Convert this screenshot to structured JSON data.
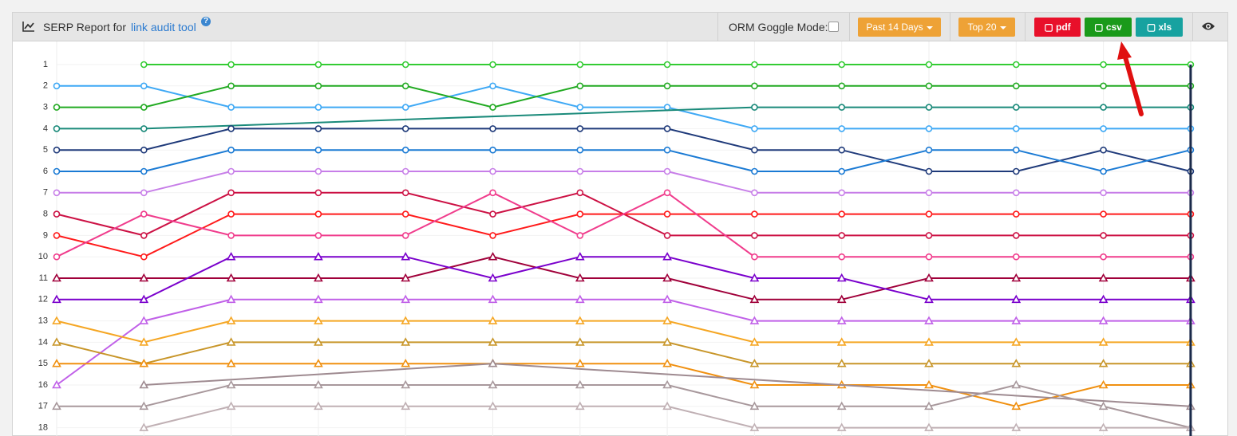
{
  "header": {
    "title_prefix": "SERP Report for",
    "link": "link audit tool",
    "help_icon": "?",
    "orm_label": "ORM Goggle Mode:",
    "buttons": {
      "period": "Past 14 Days",
      "top": "Top 20",
      "pdf": "pdf",
      "csv": "csv",
      "xls": "xls"
    }
  },
  "chart_data": {
    "type": "line",
    "reversed": true,
    "grid": true,
    "connect_nulls": true,
    "categories": [
      null,
      null,
      null,
      null,
      null,
      null,
      null,
      null,
      null,
      null,
      null,
      null,
      null,
      null
    ],
    "ylim": [
      0.5,
      20
    ],
    "yticks": [
      1,
      2,
      3,
      4,
      5,
      6,
      7,
      8,
      9,
      10,
      11,
      12,
      13,
      14,
      15,
      16,
      17,
      18
    ],
    "series": [
      {
        "color": "#33cc33",
        "marker": "circle",
        "values": [
          null,
          1,
          1,
          1,
          1,
          1,
          1,
          1,
          1,
          1,
          1,
          1,
          1,
          1
        ]
      },
      {
        "color": "#3fa9f5",
        "marker": "circle",
        "values": [
          2,
          2,
          3,
          3,
          3,
          2,
          3,
          3,
          4,
          4,
          4,
          4,
          4,
          4
        ]
      },
      {
        "color": "#22aa22",
        "marker": "circle",
        "values": [
          3,
          3,
          2,
          2,
          2,
          3,
          2,
          2,
          2,
          2,
          2,
          2,
          2,
          2
        ]
      },
      {
        "color": "#1a8a7a",
        "marker": "circle",
        "values": [
          4,
          4,
          null,
          null,
          null,
          null,
          null,
          null,
          3,
          3,
          3,
          3,
          3,
          3
        ]
      },
      {
        "color": "#1f3a7a",
        "marker": "circle",
        "values": [
          5,
          5,
          4,
          4,
          4,
          4,
          4,
          4,
          5,
          5,
          6,
          6,
          5,
          6
        ]
      },
      {
        "color": "#1a7ad4",
        "marker": "circle",
        "values": [
          6,
          6,
          5,
          5,
          5,
          5,
          5,
          5,
          6,
          6,
          5,
          5,
          6,
          5
        ]
      },
      {
        "color": "#c77ee8",
        "marker": "circle",
        "values": [
          7,
          7,
          6,
          6,
          6,
          6,
          6,
          6,
          7,
          7,
          7,
          7,
          7,
          7
        ]
      },
      {
        "color": "#cc1144",
        "marker": "circle",
        "values": [
          8,
          9,
          7,
          7,
          7,
          8,
          7,
          9,
          9,
          9,
          9,
          9,
          9,
          9
        ]
      },
      {
        "color": "#ff1a1a",
        "marker": "circle",
        "values": [
          9,
          10,
          8,
          8,
          8,
          9,
          8,
          8,
          8,
          8,
          8,
          8,
          8,
          8
        ]
      },
      {
        "color": "#f03c8c",
        "marker": "circle",
        "values": [
          10,
          8,
          9,
          9,
          9,
          7,
          9,
          7,
          10,
          10,
          10,
          10,
          10,
          10
        ]
      },
      {
        "color": "#a0003a",
        "marker": "triangle",
        "values": [
          11,
          11,
          11,
          11,
          11,
          10,
          11,
          11,
          12,
          12,
          11,
          11,
          11,
          11
        ]
      },
      {
        "color": "#7a00cc",
        "marker": "triangle",
        "values": [
          12,
          12,
          10,
          10,
          10,
          11,
          10,
          10,
          11,
          11,
          12,
          12,
          12,
          12
        ]
      },
      {
        "color": "#c060e8",
        "marker": "triangle",
        "values": [
          16,
          13,
          12,
          12,
          12,
          12,
          12,
          12,
          13,
          13,
          13,
          13,
          13,
          13
        ]
      },
      {
        "color": "#f5a623",
        "marker": "triangle",
        "values": [
          13,
          14,
          13,
          13,
          13,
          13,
          13,
          13,
          14,
          14,
          14,
          14,
          14,
          14
        ]
      },
      {
        "color": "#c8962a",
        "marker": "triangle",
        "values": [
          14,
          15,
          14,
          14,
          14,
          14,
          14,
          14,
          15,
          15,
          15,
          15,
          15,
          15
        ]
      },
      {
        "color": "#f09010",
        "marker": "triangle",
        "values": [
          15,
          15,
          15,
          15,
          15,
          15,
          15,
          15,
          16,
          16,
          16,
          17,
          16,
          16
        ]
      },
      {
        "color": "#9e8a90",
        "marker": "triangle",
        "values": [
          null,
          16,
          null,
          null,
          null,
          15,
          null,
          null,
          null,
          null,
          null,
          null,
          null,
          17
        ]
      },
      {
        "color": "#a8989c",
        "marker": "triangle",
        "values": [
          17,
          17,
          16,
          16,
          16,
          16,
          16,
          16,
          17,
          17,
          17,
          16,
          17,
          18
        ]
      },
      {
        "color": "#c0b0b4",
        "marker": "triangle",
        "values": [
          null,
          18,
          17,
          17,
          17,
          17,
          17,
          17,
          18,
          18,
          18,
          18,
          18,
          18
        ]
      }
    ]
  }
}
